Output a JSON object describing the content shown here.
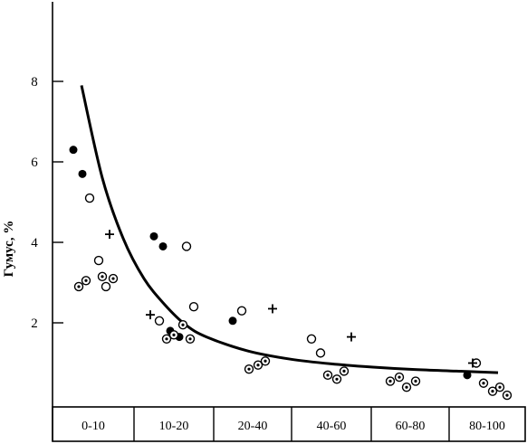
{
  "chart_data": {
    "type": "scatter",
    "title": "",
    "xlabel": "",
    "ylabel": "Гумус, %",
    "ylim": [
      0,
      10
    ],
    "y_ticks": [
      2,
      4,
      6,
      8
    ],
    "categories": [
      "0-10",
      "10-20",
      "20-40",
      "40-60",
      "60-80",
      "80-100"
    ],
    "grid": false,
    "legend": "none",
    "series": [
      {
        "marker": "filled-circle",
        "points": [
          {
            "category": "0-10",
            "y": 6.3
          },
          {
            "category": "0-10",
            "y": 5.7
          },
          {
            "category": "10-20",
            "y": 4.15
          },
          {
            "category": "10-20",
            "y": 3.9
          },
          {
            "category": "10-20",
            "y": 1.8
          },
          {
            "category": "10-20",
            "y": 1.65
          },
          {
            "category": "20-40",
            "y": 2.05
          },
          {
            "category": "80-100",
            "y": 0.7
          }
        ]
      },
      {
        "marker": "open-circle",
        "points": [
          {
            "category": "0-10",
            "y": 5.1
          },
          {
            "category": "0-10",
            "y": 3.55
          },
          {
            "category": "0-10",
            "y": 2.9
          },
          {
            "category": "10-20",
            "y": 3.9
          },
          {
            "category": "10-20",
            "y": 2.4
          },
          {
            "category": "10-20",
            "y": 2.05
          },
          {
            "category": "20-40",
            "y": 2.3
          },
          {
            "category": "40-60",
            "y": 1.6
          },
          {
            "category": "40-60",
            "y": 1.25
          },
          {
            "category": "80-100",
            "y": 1.0
          }
        ]
      },
      {
        "marker": "dotted-circle",
        "points": [
          {
            "category": "0-10",
            "y": 3.1
          },
          {
            "category": "0-10",
            "y": 2.9
          },
          {
            "category": "0-10",
            "y": 3.15
          },
          {
            "category": "0-10",
            "y": 3.05
          },
          {
            "category": "10-20",
            "y": 1.95
          },
          {
            "category": "10-20",
            "y": 1.6
          },
          {
            "category": "10-20",
            "y": 1.6
          },
          {
            "category": "10-20",
            "y": 1.7
          },
          {
            "category": "20-40",
            "y": 0.85
          },
          {
            "category": "20-40",
            "y": 0.95
          },
          {
            "category": "20-40",
            "y": 1.05
          },
          {
            "category": "40-60",
            "y": 0.7
          },
          {
            "category": "40-60",
            "y": 0.6
          },
          {
            "category": "40-60",
            "y": 0.8
          },
          {
            "category": "60-80",
            "y": 0.55
          },
          {
            "category": "60-80",
            "y": 0.65
          },
          {
            "category": "60-80",
            "y": 0.4
          },
          {
            "category": "60-80",
            "y": 0.55
          },
          {
            "category": "80-100",
            "y": 0.5
          },
          {
            "category": "80-100",
            "y": 0.3
          },
          {
            "category": "80-100",
            "y": 0.4
          },
          {
            "category": "80-100",
            "y": 0.2
          }
        ]
      },
      {
        "marker": "plus",
        "points": [
          {
            "category": "0-10",
            "y": 4.2
          },
          {
            "category": "10-20",
            "y": 2.2
          },
          {
            "category": "20-40",
            "y": 2.35
          },
          {
            "category": "40-60",
            "y": 1.65
          },
          {
            "category": "80-100",
            "y": 1.0
          }
        ]
      }
    ],
    "fit_curve": {
      "x_norm": [
        0.0,
        0.05,
        0.1,
        0.15,
        0.2,
        0.25,
        0.3,
        0.4,
        0.5,
        0.6,
        0.7,
        0.8,
        0.9,
        1.0
      ],
      "y": [
        7.9,
        5.6,
        4.1,
        3.1,
        2.45,
        1.95,
        1.65,
        1.3,
        1.1,
        0.98,
        0.9,
        0.84,
        0.8,
        0.76
      ]
    }
  }
}
